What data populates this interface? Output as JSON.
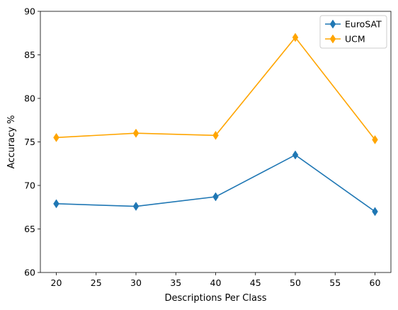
{
  "chart_data": {
    "type": "line",
    "title": "",
    "xlabel": "Descriptions Per Class",
    "ylabel": "Accuracy %",
    "x": [
      20,
      30,
      40,
      50,
      60
    ],
    "xlim": [
      18,
      62
    ],
    "ylim": [
      60,
      90
    ],
    "xticks": [
      20,
      25,
      30,
      35,
      40,
      45,
      50,
      55,
      60
    ],
    "yticks": [
      60,
      65,
      70,
      75,
      80,
      85,
      90
    ],
    "grid": false,
    "legend_position": "top-right",
    "marker": "thin-diamond",
    "series": [
      {
        "name": "EuroSAT",
        "color": "#1f77b4",
        "values": [
          67.9,
          67.6,
          68.7,
          73.5,
          67.0
        ]
      },
      {
        "name": "UCM",
        "color": "#ffa500",
        "values": [
          75.5,
          76.0,
          75.75,
          87.0,
          75.25
        ]
      }
    ]
  }
}
